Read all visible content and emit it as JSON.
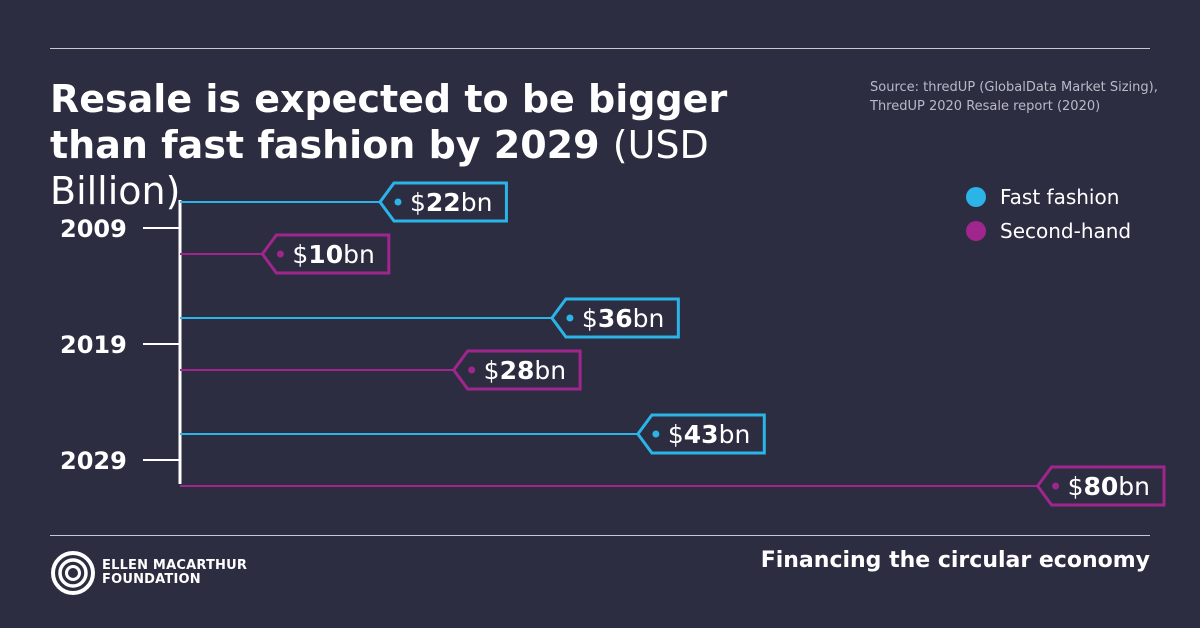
{
  "title": {
    "bold": "Resale is expected to be bigger than fast fashion by 2029",
    "light": "(USD Billion)"
  },
  "source": "Source: thredUP (GlobalData Market Sizing), ThredUP 2020 Resale report (2020)",
  "footer": {
    "tagline": "Financing the circular economy",
    "logo_line1": "ELLEN MACARTHUR",
    "logo_line2": "FOUNDATION"
  },
  "colors": {
    "background": "#2c2d41",
    "fast_fashion": "#2ab4e8",
    "second_hand": "#a0268e"
  },
  "chart_data": {
    "type": "bar",
    "orientation": "horizontal",
    "categories": [
      "2009",
      "2019",
      "2029"
    ],
    "series": [
      {
        "name": "Fast fashion",
        "values": [
          22,
          36,
          43
        ],
        "labels": [
          "$22bn",
          "$36bn",
          "$43bn"
        ],
        "color": "#2ab4e8"
      },
      {
        "name": "Second-hand",
        "values": [
          10,
          28,
          80
        ],
        "labels": [
          "$10bn",
          "$28bn",
          "$80bn"
        ],
        "color": "#a0268e"
      }
    ],
    "xlim": [
      0,
      80
    ],
    "legend": "top-right",
    "grid": false
  }
}
